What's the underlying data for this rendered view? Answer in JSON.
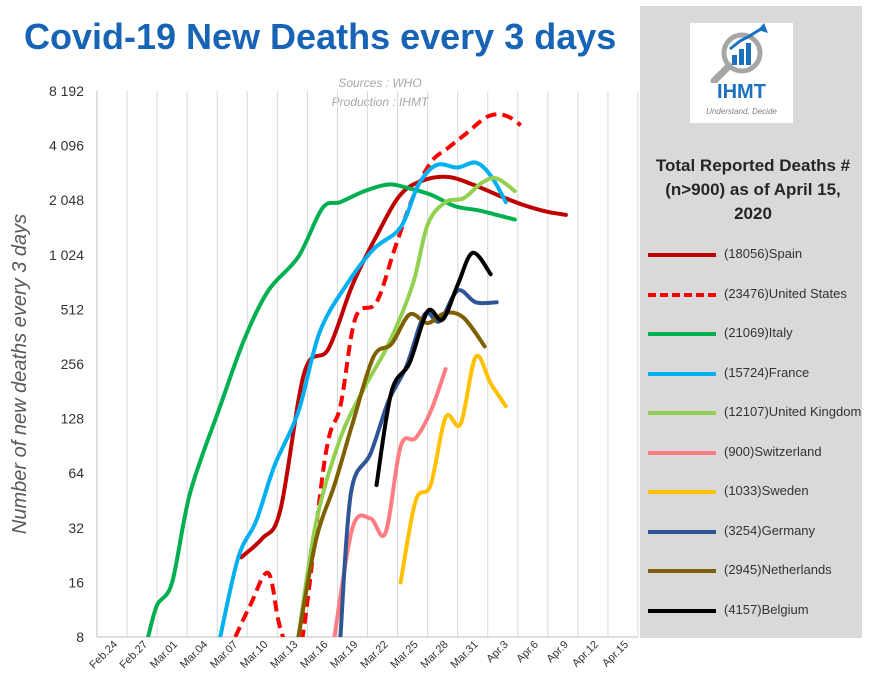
{
  "chart_data": {
    "type": "line",
    "title": "Covid-19 New Deaths every 3 days",
    "subtitle": [
      "Sources : WHO",
      "Production : IHMT"
    ],
    "ylabel": "Number of new deaths every 3 days",
    "xlabel": "",
    "y_scale": "log2",
    "ylim": [
      8,
      8192
    ],
    "y_ticks": [
      8,
      16,
      32,
      64,
      128,
      256,
      512,
      1024,
      2048,
      4096,
      8192
    ],
    "y_tick_labels": [
      "8",
      "16",
      "32",
      "64",
      "128",
      "256",
      "512",
      "1 024",
      "2 048",
      "4 096",
      "8 192"
    ],
    "x_tick_labels": [
      "Feb.24",
      "Feb.27",
      "Mar.01",
      "Mar.04",
      "Mar.07",
      "Mar.10",
      "Mar.13",
      "Mar.16",
      "Mar.19",
      "Mar.22",
      "Mar.25",
      "Mar.28",
      "Mar.31",
      "Apr.3",
      "Apr.6",
      "Apr.9",
      "Apr.12",
      "Apr.15"
    ],
    "grid": "vertical",
    "legend": {
      "title": "Total Reported Deaths # (n>900) as of April 15, 2020",
      "position": "right"
    },
    "series": [
      {
        "name": "(18056)Spain",
        "color": "#c00000",
        "dash": false,
        "points": [
          [
            4.3,
            22
          ],
          [
            5,
            28
          ],
          [
            5.6,
            40
          ],
          [
            6.4,
            230
          ],
          [
            7.2,
            310
          ],
          [
            8,
            700
          ],
          [
            8.8,
            1300
          ],
          [
            9.6,
            2200
          ],
          [
            10.4,
            2650
          ],
          [
            11.2,
            2750
          ],
          [
            12,
            2500
          ],
          [
            12.8,
            2200
          ],
          [
            13.6,
            1950
          ],
          [
            14.4,
            1780
          ],
          [
            15.1,
            1700
          ]
        ]
      },
      {
        "name": "(23476)United States",
        "color": "#ff0000",
        "dash": true,
        "points": [
          [
            4.1,
            8
          ],
          [
            4.6,
            12
          ],
          [
            5.2,
            18
          ],
          [
            5.6,
            9
          ],
          [
            6.2,
            6
          ],
          [
            7.1,
            80
          ],
          [
            7.6,
            150
          ],
          [
            8.1,
            460
          ],
          [
            8.8,
            560
          ],
          [
            9.4,
            1100
          ],
          [
            10,
            2100
          ],
          [
            10.6,
            3300
          ],
          [
            11.2,
            4000
          ],
          [
            11.8,
            4800
          ],
          [
            12.4,
            5800
          ],
          [
            12.8,
            6100
          ],
          [
            13.2,
            5900
          ],
          [
            13.6,
            5300
          ]
        ]
      },
      {
        "name": "(21069)Italy",
        "color": "#00b050",
        "dash": false,
        "points": [
          [
            1.2,
            8
          ],
          [
            1.5,
            12
          ],
          [
            2,
            16
          ],
          [
            2.6,
            50
          ],
          [
            3.6,
            150
          ],
          [
            4.4,
            350
          ],
          [
            5.2,
            650
          ],
          [
            6.2,
            1000
          ],
          [
            7,
            1850
          ],
          [
            7.6,
            2000
          ],
          [
            8.4,
            2300
          ],
          [
            9.2,
            2500
          ],
          [
            9.8,
            2400
          ],
          [
            10.6,
            2200
          ],
          [
            11.4,
            1900
          ],
          [
            12.2,
            1800
          ],
          [
            12.8,
            1700
          ],
          [
            13.4,
            1600
          ]
        ]
      },
      {
        "name": "(15724)France",
        "color": "#00b0f0",
        "dash": false,
        "points": [
          [
            3.6,
            8
          ],
          [
            4.2,
            22
          ],
          [
            4.8,
            35
          ],
          [
            5.4,
            70
          ],
          [
            6.2,
            140
          ],
          [
            6.9,
            380
          ],
          [
            7.8,
            700
          ],
          [
            8.7,
            1100
          ],
          [
            9.6,
            1450
          ],
          [
            10.2,
            2500
          ],
          [
            10.8,
            3200
          ],
          [
            11.5,
            3100
          ],
          [
            12.1,
            3300
          ],
          [
            12.6,
            2800
          ],
          [
            13.1,
            2000
          ]
        ]
      },
      {
        "name": "(12107)United Kingdom",
        "color": "#92d050",
        "dash": false,
        "points": [
          [
            6.2,
            8
          ],
          [
            6.8,
            35
          ],
          [
            7.6,
            100
          ],
          [
            8.4,
            190
          ],
          [
            9.2,
            330
          ],
          [
            10,
            700
          ],
          [
            10.5,
            1500
          ],
          [
            11.1,
            2000
          ],
          [
            11.7,
            2100
          ],
          [
            12.3,
            2550
          ],
          [
            12.8,
            2700
          ],
          [
            13.4,
            2300
          ]
        ]
      },
      {
        "name": "(900)Switzerland",
        "color": "#ff7c80",
        "dash": false,
        "points": [
          [
            7.4,
            8
          ],
          [
            8,
            32
          ],
          [
            8.6,
            36
          ],
          [
            9.1,
            30
          ],
          [
            9.6,
            90
          ],
          [
            10.1,
            100
          ],
          [
            10.6,
            140
          ],
          [
            11.1,
            240
          ]
        ]
      },
      {
        "name": "(1033)Sweden",
        "color": "#ffc000",
        "dash": false,
        "points": [
          [
            9.6,
            16
          ],
          [
            10.1,
            45
          ],
          [
            10.6,
            55
          ],
          [
            11.1,
            130
          ],
          [
            11.6,
            120
          ],
          [
            12.1,
            280
          ],
          [
            12.6,
            200
          ],
          [
            13.1,
            150
          ]
        ]
      },
      {
        "name": "(3254)Germany",
        "color": "#2f5597",
        "dash": false,
        "points": [
          [
            7.6,
            8
          ],
          [
            7.95,
            50
          ],
          [
            8.6,
            82
          ],
          [
            9.2,
            160
          ],
          [
            9.8,
            250
          ],
          [
            10.4,
            480
          ],
          [
            10.9,
            440
          ],
          [
            11.5,
            650
          ],
          [
            12.1,
            560
          ],
          [
            12.8,
            560
          ]
        ]
      },
      {
        "name": "(2945)Netherlands",
        "color": "#7f6000",
        "dash": false,
        "points": [
          [
            6.2,
            8
          ],
          [
            6.8,
            28
          ],
          [
            7.4,
            55
          ],
          [
            8,
            120
          ],
          [
            8.7,
            280
          ],
          [
            9.3,
            330
          ],
          [
            9.9,
            480
          ],
          [
            10.5,
            430
          ],
          [
            11.1,
            490
          ],
          [
            11.7,
            460
          ],
          [
            12.4,
            320
          ]
        ]
      },
      {
        "name": "(4157)Belgium",
        "color": "#000000",
        "dash": false,
        "points": [
          [
            8.8,
            55
          ],
          [
            9.3,
            180
          ],
          [
            9.9,
            260
          ],
          [
            10.5,
            500
          ],
          [
            11,
            450
          ],
          [
            11.5,
            700
          ],
          [
            12,
            1050
          ],
          [
            12.6,
            800
          ]
        ]
      }
    ]
  },
  "logo": {
    "text": "IHMT",
    "tagline": "Understand, Decide",
    "colors": {
      "blue": "#1c70c0",
      "gray": "#a6a6a6"
    }
  },
  "panel_color": "#d9d9d9"
}
